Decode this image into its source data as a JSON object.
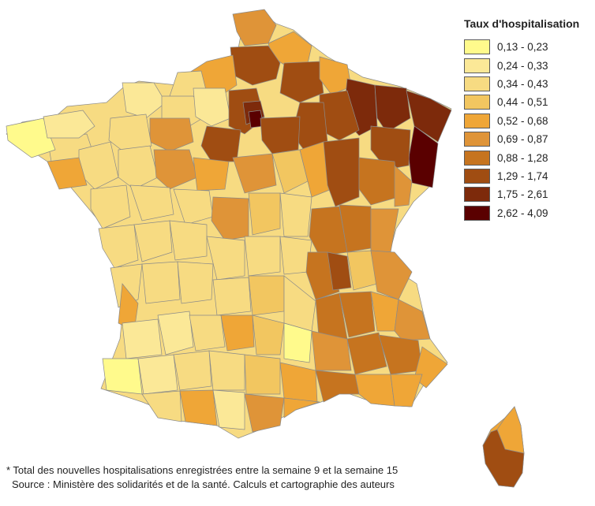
{
  "legend": {
    "title": "Taux d'hospitalisation",
    "classes": [
      {
        "label": "0,13 - 0,23",
        "color": "#fffa8c"
      },
      {
        "label": "0,24 - 0,33",
        "color": "#fbe897"
      },
      {
        "label": "0,34 - 0,43",
        "color": "#f7db82"
      },
      {
        "label": "0,44 - 0,51",
        "color": "#f2c660"
      },
      {
        "label": "0,52 - 0,68",
        "color": "#efa637"
      },
      {
        "label": "0,69 - 0,87",
        "color": "#df9438"
      },
      {
        "label": "0,88 - 1,28",
        "color": "#c6741f"
      },
      {
        "label": "1,29 - 1,74",
        "color": "#a04d12"
      },
      {
        "label": "1,75 - 2,61",
        "color": "#7d2a0b"
      },
      {
        "label": "2,62 - 4,09",
        "color": "#5a0000"
      }
    ]
  },
  "footnote": {
    "line1": "* Total des nouvelles hospitalisations enregistrées entre la semaine 9 et la semaine 15",
    "line2": "Source : Ministère des solidarités et de la santé. Calculs et cartographie des auteurs"
  }
}
